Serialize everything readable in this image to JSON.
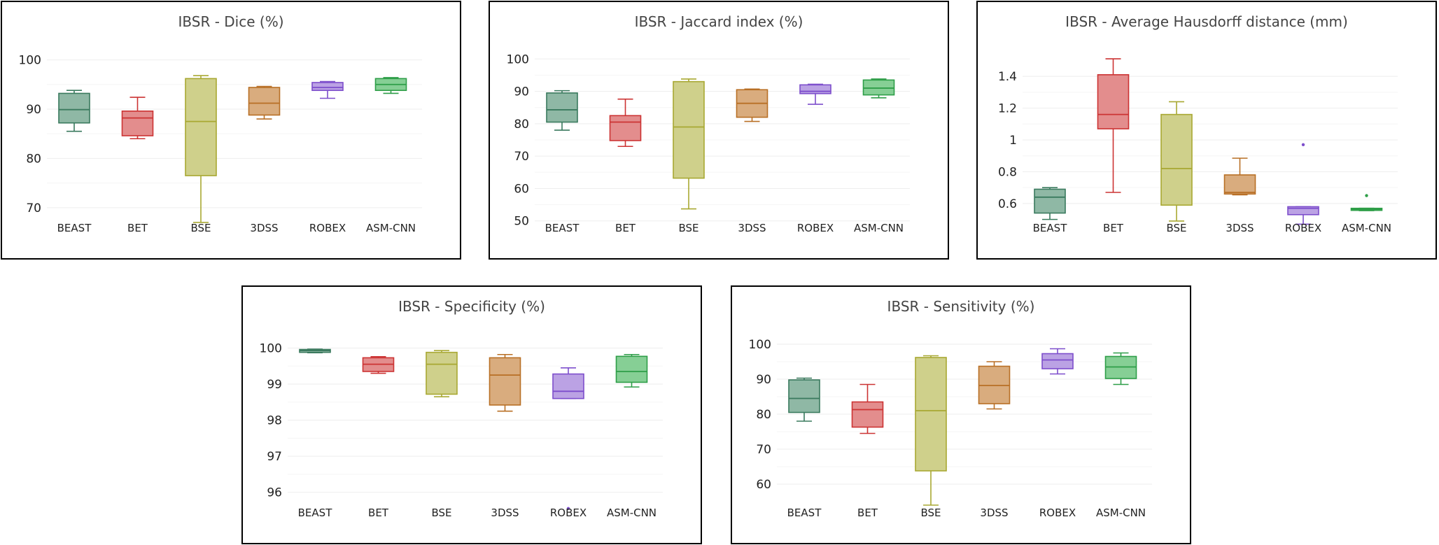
{
  "chart_data": [
    {
      "type": "box",
      "title": "IBSR - Dice (%)",
      "categories": [
        "BEAST",
        "BET",
        "BSE",
        "3DSS",
        "ROBEX",
        "ASM-CNN"
      ],
      "ylim": [
        66,
        101.5
      ],
      "yticks": [
        {
          "v": 70,
          "label": "70"
        },
        {
          "v": 80,
          "label": "80"
        },
        {
          "v": 90,
          "label": "90"
        },
        {
          "v": 100,
          "label": "100"
        }
      ],
      "boxes": [
        {
          "min": 85.5,
          "q1": 87.2,
          "median": 89.9,
          "q3": 93.2,
          "max": 93.8,
          "outliers": []
        },
        {
          "min": 84.0,
          "q1": 84.6,
          "median": 88.2,
          "q3": 89.6,
          "max": 92.4,
          "outliers": []
        },
        {
          "min": 67.0,
          "q1": 76.5,
          "median": 87.5,
          "q3": 96.2,
          "max": 96.8,
          "outliers": []
        },
        {
          "min": 88.0,
          "q1": 88.8,
          "median": 91.2,
          "q3": 94.4,
          "max": 94.6,
          "outliers": []
        },
        {
          "min": 92.2,
          "q1": 93.8,
          "median": 94.4,
          "q3": 95.4,
          "max": 95.6,
          "outliers": []
        },
        {
          "min": 93.2,
          "q1": 93.8,
          "median": 95.0,
          "q3": 96.2,
          "max": 96.4,
          "outliers": []
        }
      ]
    },
    {
      "type": "box",
      "title": "IBSR - Jaccard index (%)",
      "categories": [
        "BEAST",
        "BET",
        "BSE",
        "3DSS",
        "ROBEX",
        "ASM-CNN"
      ],
      "ylim": [
        48,
        102
      ],
      "yticks": [
        {
          "v": 50,
          "label": "50"
        },
        {
          "v": 60,
          "label": "60"
        },
        {
          "v": 70,
          "label": "70"
        },
        {
          "v": 80,
          "label": "80"
        },
        {
          "v": 90,
          "label": "90"
        },
        {
          "v": 100,
          "label": "100"
        }
      ],
      "boxes": [
        {
          "min": 78.0,
          "q1": 80.5,
          "median": 84.3,
          "q3": 89.5,
          "max": 90.2,
          "outliers": []
        },
        {
          "min": 73.0,
          "q1": 74.8,
          "median": 80.5,
          "q3": 82.5,
          "max": 87.6,
          "outliers": []
        },
        {
          "min": 53.7,
          "q1": 63.2,
          "median": 79.0,
          "q3": 93.0,
          "max": 93.8,
          "outliers": []
        },
        {
          "min": 80.7,
          "q1": 82.0,
          "median": 86.3,
          "q3": 90.5,
          "max": 90.7,
          "outliers": []
        },
        {
          "min": 86.0,
          "q1": 89.3,
          "median": 90.0,
          "q3": 92.0,
          "max": 92.2,
          "outliers": []
        },
        {
          "min": 88.0,
          "q1": 88.9,
          "median": 91.0,
          "q3": 93.5,
          "max": 93.8,
          "outliers": []
        }
      ]
    },
    {
      "type": "box",
      "title": "IBSR - Average Hausdorff distance (mm)",
      "categories": [
        "BEAST",
        "BET",
        "BSE",
        "3DSS",
        "ROBEX",
        "ASM-CNN"
      ],
      "ylim": [
        0.45,
        1.55
      ],
      "yticks": [
        {
          "v": 0.6,
          "label": "0.6"
        },
        {
          "v": 0.8,
          "label": "0.8"
        },
        {
          "v": 1.0,
          "label": "1"
        },
        {
          "v": 1.2,
          "label": "1.2"
        },
        {
          "v": 1.4,
          "label": "1.4"
        }
      ],
      "boxes": [
        {
          "min": 0.5,
          "q1": 0.54,
          "median": 0.64,
          "q3": 0.69,
          "max": 0.7,
          "outliers": []
        },
        {
          "min": 0.67,
          "q1": 1.07,
          "median": 1.16,
          "q3": 1.41,
          "max": 1.51,
          "outliers": []
        },
        {
          "min": 0.49,
          "q1": 0.59,
          "median": 0.82,
          "q3": 1.16,
          "max": 1.24,
          "outliers": []
        },
        {
          "min": 0.655,
          "q1": 0.66,
          "median": 0.67,
          "q3": 0.78,
          "max": 0.885,
          "outliers": []
        },
        {
          "min": 0.47,
          "q1": 0.53,
          "median": 0.57,
          "q3": 0.58,
          "max": 0.58,
          "outliers": [
            0.97
          ]
        },
        {
          "min": 0.555,
          "q1": 0.557,
          "median": 0.563,
          "q3": 0.57,
          "max": 0.57,
          "outliers": [
            0.65
          ]
        }
      ]
    },
    {
      "type": "box",
      "title": "IBSR - Specificity (%)",
      "categories": [
        "BEAST",
        "BET",
        "BSE",
        "3DSS",
        "ROBEX",
        "ASM-CNN"
      ],
      "ylim": [
        95.45,
        100.3
      ],
      "yticks": [
        {
          "v": 96,
          "label": "96"
        },
        {
          "v": 97,
          "label": "97"
        },
        {
          "v": 98,
          "label": "98"
        },
        {
          "v": 99,
          "label": "99"
        },
        {
          "v": 100,
          "label": "100"
        }
      ],
      "boxes": [
        {
          "min": 99.87,
          "q1": 99.88,
          "median": 99.93,
          "q3": 99.96,
          "max": 99.97,
          "outliers": []
        },
        {
          "min": 99.3,
          "q1": 99.35,
          "median": 99.55,
          "q3": 99.73,
          "max": 99.76,
          "outliers": []
        },
        {
          "min": 98.65,
          "q1": 98.72,
          "median": 99.55,
          "q3": 99.88,
          "max": 99.93,
          "outliers": []
        },
        {
          "min": 98.25,
          "q1": 98.42,
          "median": 99.25,
          "q3": 99.73,
          "max": 99.82,
          "outliers": []
        },
        {
          "min": 98.6,
          "q1": 98.6,
          "median": 98.8,
          "q3": 99.28,
          "max": 99.45,
          "outliers": [
            95.55
          ]
        },
        {
          "min": 98.92,
          "q1": 99.05,
          "median": 99.35,
          "q3": 99.77,
          "max": 99.82,
          "outliers": []
        }
      ]
    },
    {
      "type": "box",
      "title": "IBSR - Sensitivity (%)",
      "categories": [
        "BEAST",
        "BET",
        "BSE",
        "3DSS",
        "ROBEX",
        "ASM-CNN"
      ],
      "ylim": [
        52,
        102
      ],
      "yticks": [
        {
          "v": 60,
          "label": "60"
        },
        {
          "v": 70,
          "label": "70"
        },
        {
          "v": 80,
          "label": "80"
        },
        {
          "v": 90,
          "label": "90"
        },
        {
          "v": 100,
          "label": "100"
        }
      ],
      "boxes": [
        {
          "min": 78.0,
          "q1": 80.5,
          "median": 84.5,
          "q3": 89.8,
          "max": 90.3,
          "outliers": []
        },
        {
          "min": 74.5,
          "q1": 76.3,
          "median": 81.3,
          "q3": 83.5,
          "max": 88.5,
          "outliers": []
        },
        {
          "min": 54.0,
          "q1": 63.8,
          "median": 81.0,
          "q3": 96.2,
          "max": 96.7,
          "outliers": []
        },
        {
          "min": 81.5,
          "q1": 83.0,
          "median": 88.2,
          "q3": 93.7,
          "max": 95.0,
          "outliers": []
        },
        {
          "min": 91.5,
          "q1": 93.0,
          "median": 95.5,
          "q3": 97.3,
          "max": 98.7,
          "outliers": []
        },
        {
          "min": 88.5,
          "q1": 90.2,
          "median": 93.5,
          "q3": 96.5,
          "max": 97.5,
          "outliers": []
        }
      ]
    }
  ],
  "series_colors": [
    {
      "stroke": "#3a7a5e",
      "fill": "#8fb8a5"
    },
    {
      "stroke": "#cc3333",
      "fill": "#e38d8d"
    },
    {
      "stroke": "#a8a832",
      "fill": "#cfd08b"
    },
    {
      "stroke": "#b86f25",
      "fill": "#d9ac7e"
    },
    {
      "stroke": "#7d4ecc",
      "fill": "#bba2e4"
    },
    {
      "stroke": "#2e9e48",
      "fill": "#86cf95"
    }
  ]
}
